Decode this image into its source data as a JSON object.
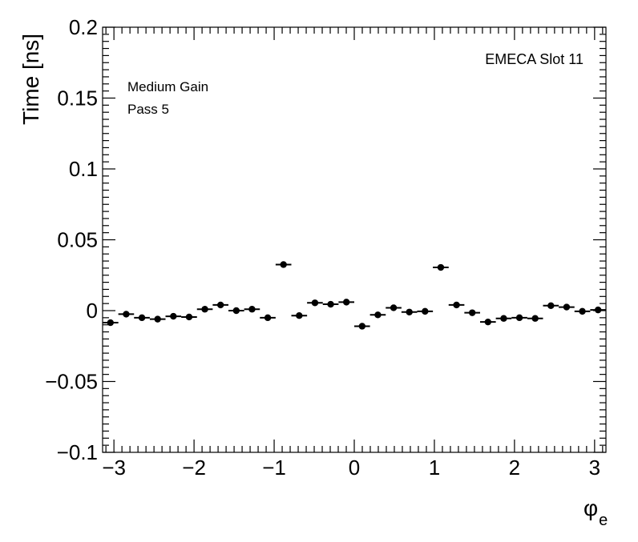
{
  "chart_data": {
    "type": "scatter",
    "title": "",
    "xlabel": "φ",
    "xlabel_subscript": "e",
    "ylabel": "Time [ns]",
    "xlim": [
      -3.1416,
      3.1416
    ],
    "ylim": [
      -0.1,
      0.2
    ],
    "x_ticks": [
      {
        "value": -3,
        "label": "−3"
      },
      {
        "value": -2,
        "label": "−2"
      },
      {
        "value": -1,
        "label": "−1"
      },
      {
        "value": 0,
        "label": "0"
      },
      {
        "value": 1,
        "label": "1"
      },
      {
        "value": 2,
        "label": "2"
      },
      {
        "value": 3,
        "label": "3"
      }
    ],
    "y_ticks": [
      {
        "value": -0.1,
        "label": "−0.1"
      },
      {
        "value": -0.05,
        "label": "−0.05"
      },
      {
        "value": 0,
        "label": "0"
      },
      {
        "value": 0.05,
        "label": "0.05"
      },
      {
        "value": 0.1,
        "label": "0.1"
      },
      {
        "value": 0.15,
        "label": "0.15"
      },
      {
        "value": 0.2,
        "label": "0.2"
      }
    ],
    "bin_width": 0.19635,
    "grid": false,
    "annotations": {
      "top_right": "EMECA Slot 11",
      "gain": "Medium Gain",
      "pass": "Pass 5"
    },
    "series": [
      {
        "marker_color": "#000000",
        "x": [
          -3.0434,
          -2.8471,
          -2.6507,
          -2.4544,
          -2.258,
          -2.0617,
          -1.8653,
          -1.669,
          -1.4726,
          -1.2763,
          -1.0799,
          -0.8836,
          -0.6872,
          -0.4909,
          -0.2945,
          -0.0982,
          0.0982,
          0.2945,
          0.4909,
          0.6872,
          0.8836,
          1.0799,
          1.2763,
          1.4726,
          1.669,
          1.8653,
          2.0617,
          2.258,
          2.4544,
          2.6507,
          2.8471,
          3.0434
        ],
        "y": [
          -0.0085,
          -0.0025,
          -0.005,
          -0.006,
          -0.004,
          -0.0045,
          0.001,
          0.004,
          0.0,
          0.001,
          -0.005,
          0.0325,
          -0.0035,
          0.0055,
          0.0045,
          0.006,
          -0.011,
          -0.003,
          0.002,
          -0.001,
          -0.0005,
          0.0305,
          0.004,
          -0.0015,
          -0.008,
          -0.0055,
          -0.005,
          -0.0055,
          0.0035,
          0.0025,
          -0.0005,
          0.0005
        ]
      }
    ]
  }
}
